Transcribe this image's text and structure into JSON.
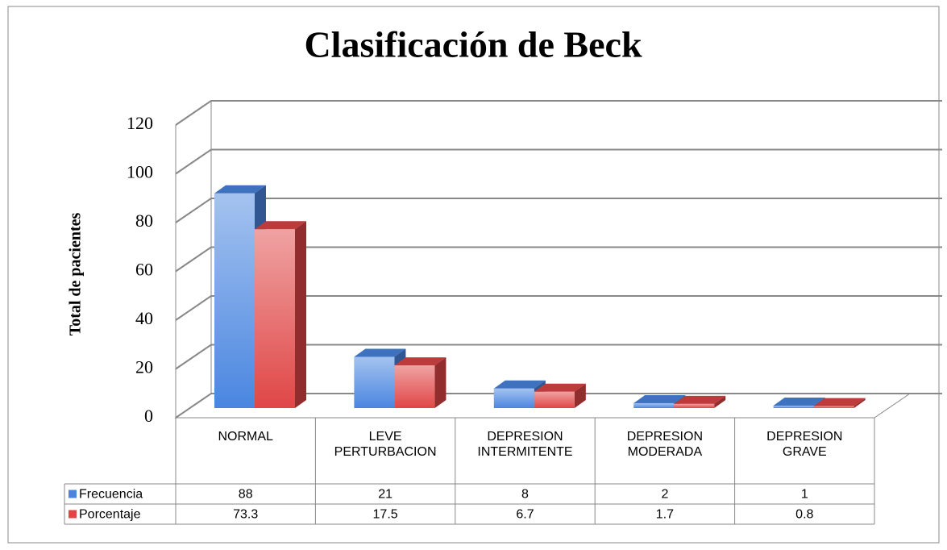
{
  "chart_data": {
    "type": "bar3d",
    "title": "Clasificación de Beck",
    "y_label": "Total de pacientes",
    "categories": [
      "NORMAL",
      "LEVE PERTURBACION",
      "DEPRESION INTERMITENTE",
      "DEPRESION MODERADA",
      "DEPRESION GRAVE"
    ],
    "series": [
      {
        "name": "Frecuencia",
        "color": "#4a86e0",
        "values": [
          88,
          21,
          8,
          2,
          1
        ]
      },
      {
        "name": "Porcentaje",
        "color": "#e04646",
        "values": [
          73.3,
          17.5,
          6.7,
          1.7,
          0.8
        ]
      }
    ],
    "ylim": [
      0,
      120
    ],
    "yticks": [
      0,
      20,
      40,
      60,
      80,
      100,
      120
    ],
    "grid": true,
    "data_table": true
  }
}
